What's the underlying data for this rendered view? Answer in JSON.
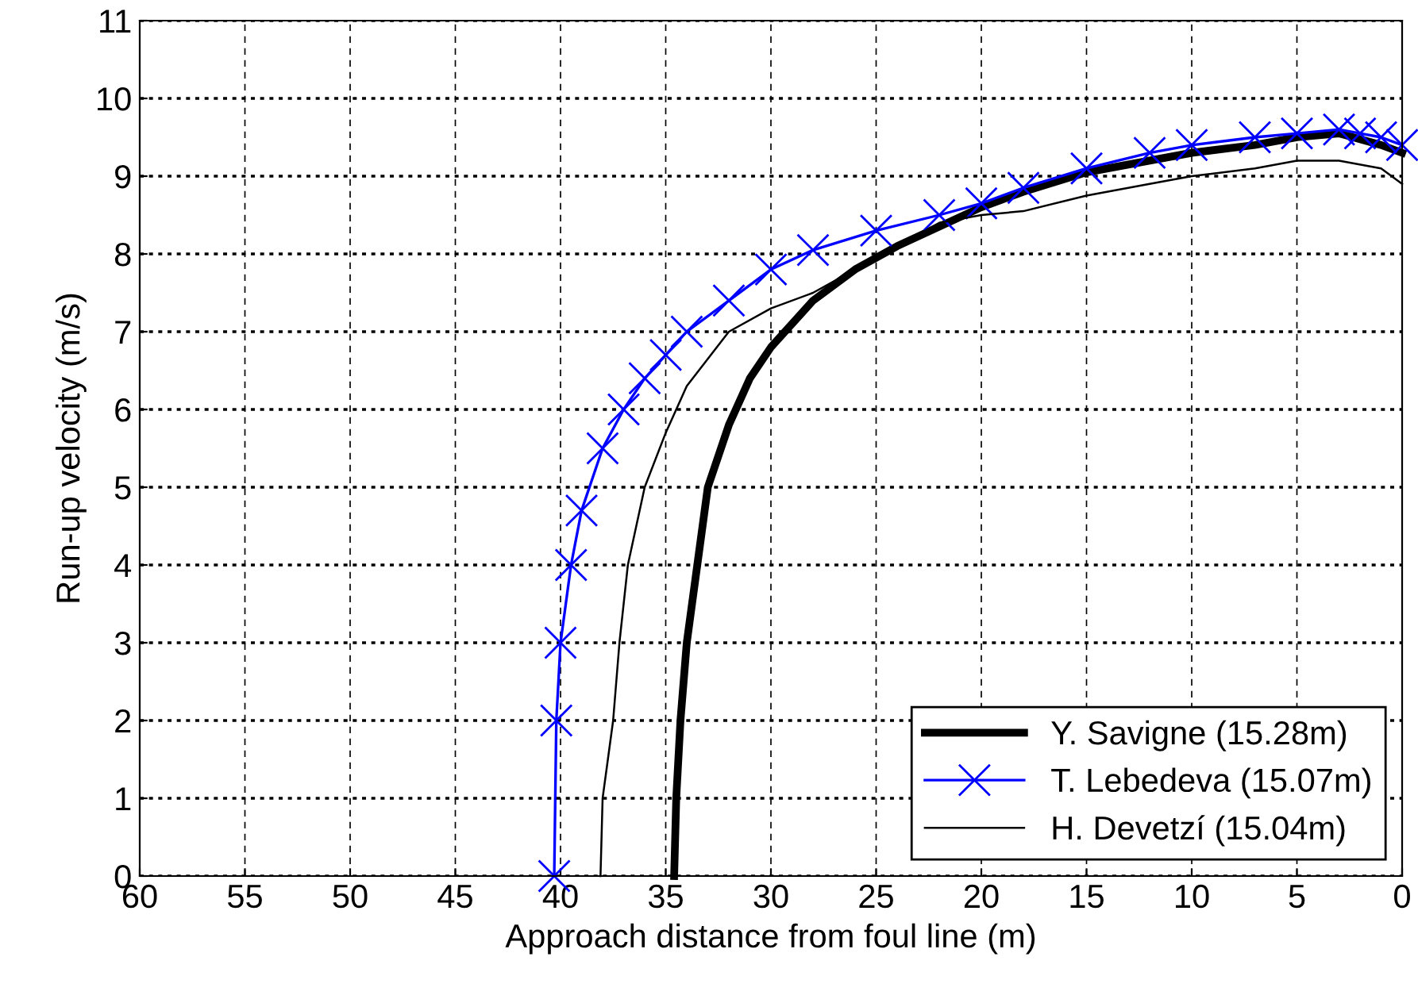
{
  "chart_data": {
    "type": "line",
    "xlabel": "Approach distance from foul line (m)",
    "ylabel": "Run-up velocity (m/s)",
    "xlim": [
      60,
      0
    ],
    "xticks": [
      60,
      55,
      50,
      45,
      40,
      35,
      30,
      25,
      20,
      15,
      10,
      5,
      0
    ],
    "ylim": [
      0,
      11
    ],
    "yticks": [
      0,
      1,
      2,
      3,
      4,
      5,
      6,
      7,
      8,
      9,
      10,
      11
    ],
    "grid": true,
    "legend": "bottom right",
    "series": [
      {
        "name": "Y. Savigne (15.28m)",
        "color": "#000000",
        "marker": "none",
        "x": [
          34.6,
          34.5,
          34.3,
          34,
          33.5,
          33,
          32,
          31,
          30,
          28,
          26,
          24,
          22,
          20,
          18,
          15,
          12,
          10,
          7,
          5,
          3,
          1,
          0
        ],
        "values": [
          0,
          1,
          2,
          3,
          4,
          5,
          5.8,
          6.4,
          6.8,
          7.4,
          7.8,
          8.1,
          8.35,
          8.6,
          8.8,
          9.05,
          9.2,
          9.3,
          9.4,
          9.5,
          9.55,
          9.4,
          9.3
        ]
      },
      {
        "name": "T. Lebedeva (15.07m)",
        "color": "#0000ff",
        "marker": "cross",
        "x": [
          40.3,
          40.2,
          40,
          39.5,
          39,
          38,
          37,
          36,
          35,
          34,
          32,
          30,
          28,
          25,
          22,
          20,
          18,
          15,
          12,
          10,
          7,
          5,
          3,
          2,
          1,
          0
        ],
        "values": [
          0,
          2,
          3,
          4,
          4.7,
          5.5,
          6,
          6.4,
          6.7,
          7,
          7.4,
          7.8,
          8.05,
          8.3,
          8.5,
          8.65,
          8.85,
          9.1,
          9.3,
          9.4,
          9.5,
          9.55,
          9.6,
          9.55,
          9.5,
          9.4
        ]
      },
      {
        "name": "H. Devetzí (15.04m)",
        "color": "#000000",
        "marker": "none",
        "x": [
          38.1,
          38,
          37.5,
          37.2,
          36.8,
          36,
          35,
          34,
          32,
          30,
          28,
          26,
          24,
          22,
          20,
          18,
          15,
          12,
          10,
          7,
          5,
          3,
          1,
          0
        ],
        "values": [
          0,
          1,
          2,
          3,
          4,
          5,
          5.7,
          6.3,
          7,
          7.3,
          7.5,
          7.8,
          8.1,
          8.4,
          8.5,
          8.55,
          8.75,
          8.9,
          9,
          9.1,
          9.2,
          9.2,
          9.1,
          8.9
        ]
      }
    ]
  }
}
